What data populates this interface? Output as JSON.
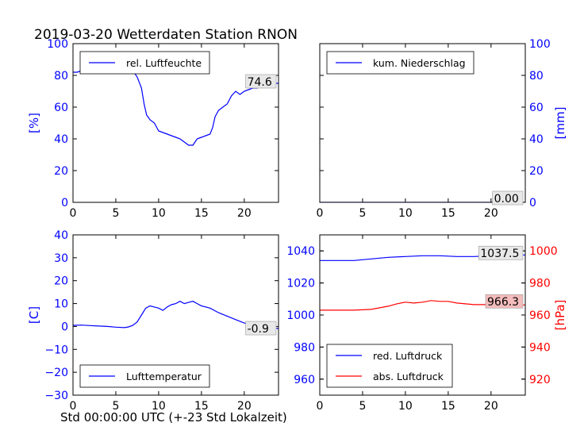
{
  "title": "2019-03-20 Wetterdaten Station RNON",
  "xlabel": "Std 00:00:00 UTC (+-23 Std Lokalzeit)",
  "colors": {
    "blue": "#0000ff",
    "red": "#ff0000",
    "last_label_bg_red": "#f4bcbc",
    "last_label_bg_gray": "#e8e8e8"
  },
  "chart_data": [
    {
      "id": "humidity",
      "type": "line",
      "ylabel": "[%]",
      "xlim": [
        0,
        24
      ],
      "ylim": [
        0,
        100
      ],
      "xticks": [
        "0",
        "5",
        "10",
        "15",
        "20"
      ],
      "yticks": [
        "0",
        "20",
        "40",
        "60",
        "80",
        "100"
      ],
      "legend": "top-left",
      "series": [
        {
          "name": "rel. Luftfeuchte",
          "color": "#0000ff",
          "x": [
            0,
            0.5,
            1,
            1.5,
            2,
            2.5,
            3,
            3.5,
            4,
            4.5,
            5,
            5.5,
            6,
            6.5,
            7,
            7.5,
            8,
            8.3,
            8.6,
            9,
            9.5,
            10,
            10.5,
            11,
            11.5,
            12,
            12.5,
            13,
            13.5,
            14,
            14.5,
            15,
            15.5,
            16,
            16.3,
            16.6,
            17,
            17.5,
            18,
            18.5,
            19,
            19.5,
            20,
            20.5,
            21,
            21.5,
            22,
            22.5,
            23,
            23.5,
            24
          ],
          "values": [
            82,
            82,
            83,
            84,
            84,
            85,
            84,
            85,
            85,
            85,
            85,
            85,
            86,
            85,
            83,
            79,
            72,
            62,
            55,
            52,
            50,
            45,
            44,
            43,
            42,
            41,
            40,
            38,
            36,
            36,
            40,
            41,
            42,
            43,
            47,
            54,
            58,
            60,
            62,
            67,
            70,
            68,
            70,
            71,
            72,
            72,
            73,
            74,
            74,
            75,
            75
          ]
        }
      ],
      "last_value_label": "74.6"
    },
    {
      "id": "precipitation",
      "type": "line",
      "ylabel": "[mm]",
      "xlim": [
        0,
        24
      ],
      "ylim": [
        0,
        100
      ],
      "xticks": [
        "0",
        "5",
        "10",
        "15",
        "20"
      ],
      "yticks": [
        "0",
        "20",
        "40",
        "60",
        "80",
        "100"
      ],
      "yaxis_side": "right",
      "legend": "top-left",
      "series": [
        {
          "name": "kum. Niederschlag",
          "color": "#0000ff",
          "x": [
            0,
            24
          ],
          "values": [
            0,
            0
          ]
        }
      ],
      "last_value_label": "0.00"
    },
    {
      "id": "temperature",
      "type": "line",
      "ylabel": "[C]",
      "xlim": [
        0,
        24
      ],
      "ylim": [
        -30,
        40
      ],
      "xticks": [
        "0",
        "5",
        "10",
        "15",
        "20"
      ],
      "yticks": [
        "−30",
        "−20",
        "−10",
        "0",
        "10",
        "20",
        "30",
        "40"
      ],
      "legend": "bottom-left",
      "series": [
        {
          "name": "Lufttemperatur",
          "color": "#0000ff",
          "x": [
            0,
            1,
            2,
            3,
            4,
            5,
            6,
            6.5,
            7,
            7.5,
            8,
            8.5,
            9,
            9.5,
            10,
            10.5,
            11,
            11.5,
            12,
            12.5,
            13,
            13.5,
            14,
            14.5,
            15,
            16,
            17,
            18,
            19,
            20,
            21,
            22,
            23,
            24
          ],
          "values": [
            0.5,
            0.6,
            0.4,
            0.2,
            0,
            -0.3,
            -0.5,
            -0.2,
            0.5,
            2,
            5,
            8,
            9,
            8.5,
            8,
            7,
            8.5,
            9.5,
            10,
            11,
            10,
            10.5,
            11,
            10,
            9,
            8,
            6,
            4.5,
            3,
            1.5,
            0.5,
            0,
            -0.5,
            -0.9
          ]
        }
      ],
      "last_value_label": "-0.9"
    },
    {
      "id": "pressure",
      "type": "line",
      "xlim": [
        0,
        24
      ],
      "ylim": [
        950,
        1050
      ],
      "xticks": [
        "0",
        "5",
        "10",
        "15",
        "20"
      ],
      "yticks_left": [
        "960",
        "980",
        "1000",
        "1020",
        "1040"
      ],
      "ylabel_right": "[hPa]",
      "ylim_right": [
        910,
        1010
      ],
      "yticks_right": [
        "920",
        "940",
        "960",
        "980",
        "1000"
      ],
      "legend": "bottom-left",
      "series": [
        {
          "name": "red. Luftdruck",
          "color": "#0000ff",
          "axis": "left",
          "x": [
            0,
            2,
            4,
            6,
            8,
            10,
            12,
            14,
            16,
            18,
            20,
            22,
            24
          ],
          "values": [
            1034,
            1034,
            1034,
            1035,
            1036,
            1036.5,
            1037,
            1037,
            1036.5,
            1036.5,
            1037,
            1037.3,
            1037.5
          ]
        },
        {
          "name": "abs. Luftdruck",
          "color": "#ff0000",
          "axis": "right",
          "x": [
            0,
            2,
            4,
            6,
            8,
            9,
            10,
            11,
            12,
            13,
            14,
            15,
            16,
            17,
            18,
            19,
            20,
            21,
            22,
            23,
            24
          ],
          "values": [
            963,
            963,
            963,
            963.5,
            965.5,
            967,
            968,
            967.5,
            968,
            969,
            968.5,
            968.5,
            967.5,
            967,
            966.5,
            966.5,
            966.5,
            967,
            966.5,
            966.3,
            966.3
          ]
        }
      ],
      "last_value_labels": {
        "left": "1037.5",
        "right": "966.3"
      }
    }
  ]
}
